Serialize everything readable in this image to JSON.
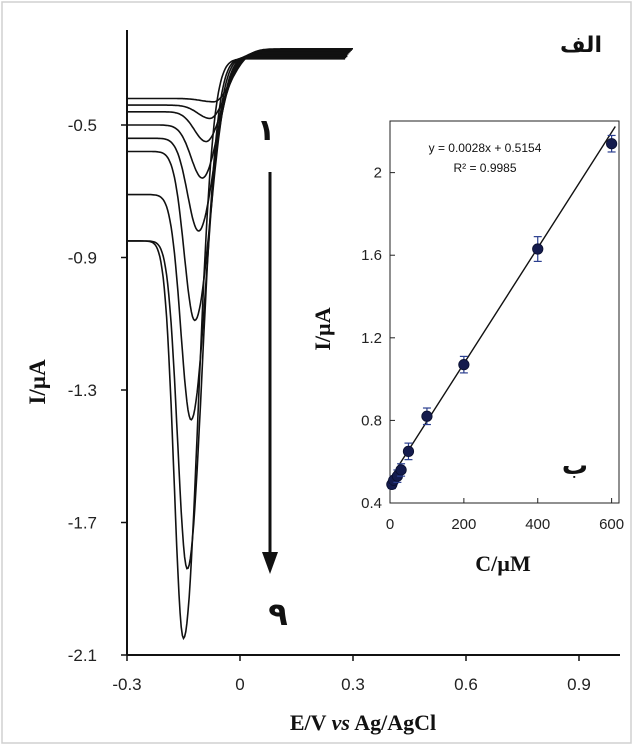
{
  "chart_data": [
    {
      "type": "line",
      "panel_label": "الف",
      "xlabel_parts": [
        "E/V ",
        "vs",
        " Ag/AgCl"
      ],
      "ylabel": "I/µA",
      "xlim": [
        -0.3,
        1.0
      ],
      "ylim": [
        -2.1,
        -0.2
      ],
      "x_ticks": [
        -0.3,
        0,
        0.3,
        0.6,
        0.9
      ],
      "x_tick_labels": [
        "-0.3",
        "0",
        "0.3",
        "0.6",
        "0.9"
      ],
      "y_ticks": [
        -0.5,
        -0.9,
        -1.3,
        -1.7,
        -2.1
      ],
      "y_tick_labels": [
        "-0.5",
        "-0.9",
        "-1.3",
        "-1.7",
        "-2.1"
      ],
      "arrow_start_label": "۱",
      "arrow_end_label": "۹",
      "series": [
        {
          "peak_potential": -0.07,
          "start_current": -0.42,
          "peak_current": -0.43
        },
        {
          "peak_potential": -0.08,
          "start_current": -0.44,
          "peak_current": -0.48
        },
        {
          "peak_potential": -0.09,
          "start_current": -0.46,
          "peak_current": -0.55
        },
        {
          "peak_potential": -0.1,
          "start_current": -0.5,
          "peak_current": -0.66
        },
        {
          "peak_potential": -0.11,
          "start_current": -0.54,
          "peak_current": -0.82
        },
        {
          "peak_potential": -0.12,
          "start_current": -0.58,
          "peak_current": -1.09
        },
        {
          "peak_potential": -0.13,
          "start_current": -0.71,
          "peak_current": -1.39
        },
        {
          "peak_potential": -0.14,
          "start_current": -0.85,
          "peak_current": -1.84
        },
        {
          "peak_potential": -0.15,
          "start_current": -0.85,
          "peak_current": -2.05
        }
      ]
    },
    {
      "type": "scatter",
      "panel_label": "ب",
      "xlabel": "C/µM",
      "ylabel": "I/µA",
      "xlim": [
        0,
        620
      ],
      "ylim": [
        0.4,
        2.25
      ],
      "x_ticks": [
        0,
        200,
        400,
        600
      ],
      "x_tick_labels": [
        "0",
        "200",
        "400",
        "600"
      ],
      "y_ticks": [
        0.4,
        0.8,
        1.2,
        1.6,
        2.0
      ],
      "y_tick_labels": [
        "0.4",
        "0.8",
        "1.2",
        "1.6",
        "2"
      ],
      "equation": "y = 0.0028x + 0.5154",
      "r_squared": "R² = 0.9985",
      "fit": {
        "slope": 0.0028,
        "intercept": 0.5154
      },
      "points": [
        {
          "x": 5,
          "y": 0.49,
          "err": 0.02
        },
        {
          "x": 10,
          "y": 0.51,
          "err": 0.02
        },
        {
          "x": 20,
          "y": 0.53,
          "err": 0.03
        },
        {
          "x": 30,
          "y": 0.56,
          "err": 0.03
        },
        {
          "x": 50,
          "y": 0.65,
          "err": 0.04
        },
        {
          "x": 100,
          "y": 0.82,
          "err": 0.04
        },
        {
          "x": 200,
          "y": 1.07,
          "err": 0.04
        },
        {
          "x": 400,
          "y": 1.63,
          "err": 0.06
        },
        {
          "x": 600,
          "y": 2.14,
          "err": 0.04
        }
      ]
    }
  ]
}
